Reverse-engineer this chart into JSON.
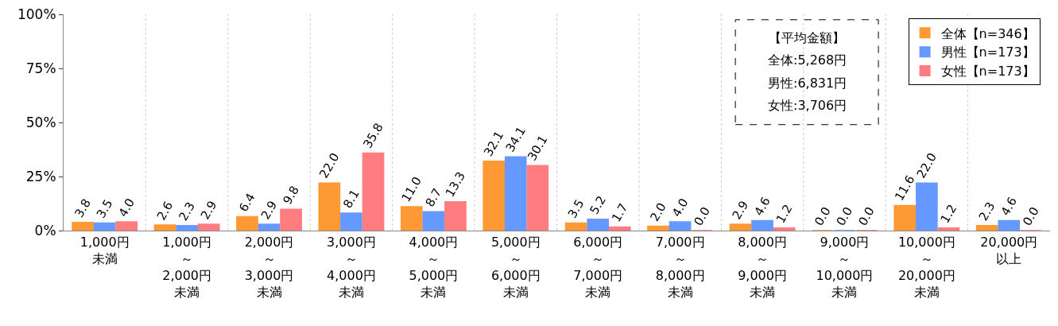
{
  "chart_data": {
    "type": "bar",
    "categories": [
      "1,000円未満",
      "1,000円～2,000円未満",
      "2,000円～3,000円未満",
      "3,000円～4,000円未満",
      "4,000円～5,000円未満",
      "5,000円～6,000円未満",
      "6,000円～7,000円未満",
      "7,000円～8,000円未満",
      "8,000円～9,000円未満",
      "9,000円～10,000円未満",
      "10,000円～20,000円未満",
      "20,000円以上"
    ],
    "series": [
      {
        "name": "全体【n=346】",
        "color": "#ff9933",
        "values": [
          3.8,
          2.6,
          6.4,
          22.0,
          11.0,
          32.1,
          3.5,
          2.0,
          2.9,
          0.0,
          11.6,
          2.3
        ],
        "value_labels": [
          "3.8",
          "2.6",
          "6.4",
          "22.0",
          "11.0",
          "32.1",
          "3.5",
          "2.0",
          "2.9",
          "0.0",
          "11.6",
          "2.3"
        ]
      },
      {
        "name": "男性【n=173】",
        "color": "#6699ff",
        "values": [
          3.5,
          2.3,
          2.9,
          8.1,
          8.7,
          34.1,
          5.2,
          4.0,
          4.6,
          0.0,
          22.0,
          4.6
        ],
        "value_labels": [
          "3.5",
          "2.3",
          "2.9",
          "8.1",
          "8.7",
          "34.1",
          "5.2",
          "4.0",
          "4.6",
          "0.0",
          "22.0",
          "4.6"
        ]
      },
      {
        "name": "女性【n=173】",
        "color": "#ff7c80",
        "values": [
          4.0,
          2.9,
          9.8,
          35.8,
          13.3,
          30.1,
          1.7,
          0.0,
          1.2,
          0.0,
          1.2,
          0.0
        ],
        "value_labels": [
          "4.0",
          "2.9",
          "9.8",
          "35.8",
          "13.3",
          "30.1",
          "1.7",
          "0.0",
          "1.2",
          "0.0",
          "1.2",
          "0.0"
        ]
      }
    ],
    "ylim": [
      0,
      100
    ],
    "yticks": [
      {
        "value": 0,
        "label": "0%"
      },
      {
        "value": 25,
        "label": "25%"
      },
      {
        "value": 50,
        "label": "50%"
      },
      {
        "value": 75,
        "label": "75%"
      },
      {
        "value": 100,
        "label": "100%"
      }
    ],
    "grid": "x",
    "legend": "top right",
    "annotations": [
      "【平均金額】",
      "全体:5,268円",
      "男性:6,831円",
      "女性:3,706円"
    ]
  }
}
